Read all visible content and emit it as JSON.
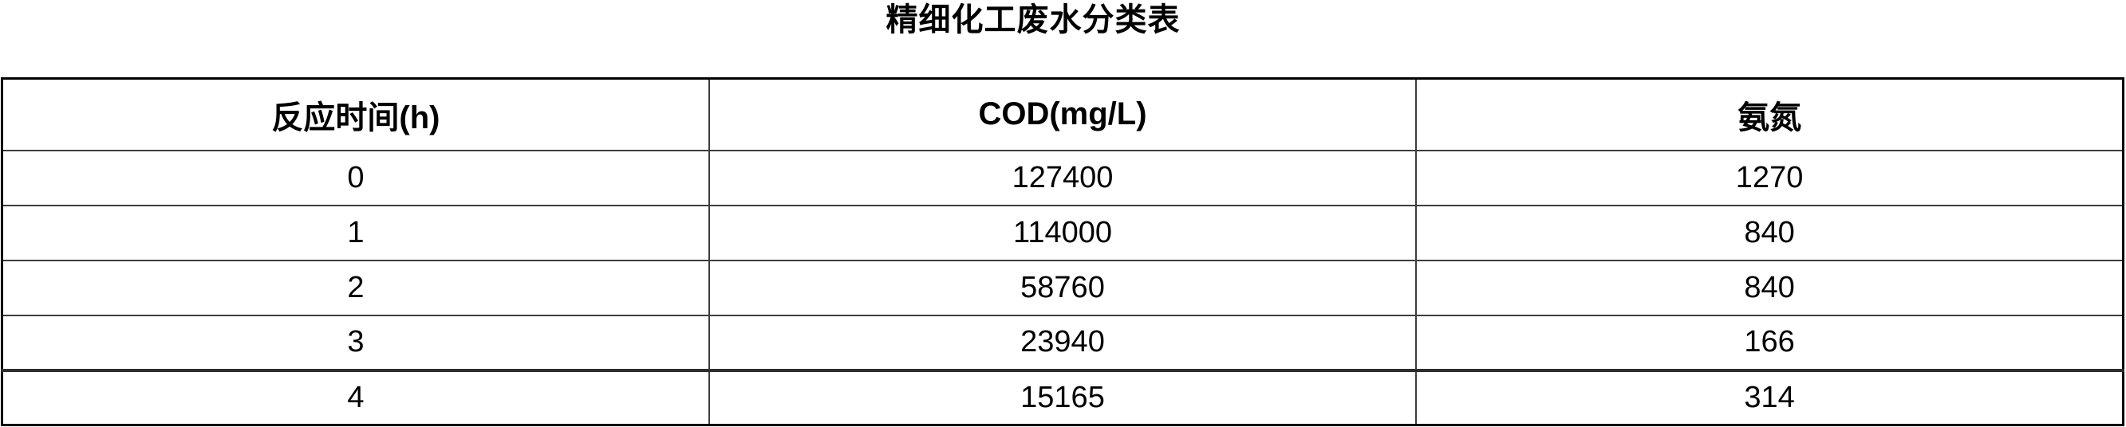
{
  "page": {
    "title": "精细化工废水分类表"
  },
  "table": {
    "columns": [
      "反应时间(h)",
      "COD(mg/L)",
      "氨氮"
    ],
    "rows": [
      [
        "0",
        "127400",
        "1270"
      ],
      [
        "1",
        "114000",
        "840"
      ],
      [
        "2",
        "58760",
        "840"
      ],
      [
        "3",
        "23940",
        "166"
      ],
      [
        "4",
        "15165",
        "314"
      ]
    ]
  },
  "chart_data": {
    "type": "table",
    "title": "精细化工废水分类表",
    "columns": [
      "反应时间(h)",
      "COD(mg/L)",
      "氨氮"
    ],
    "x_label": "反应时间(h)",
    "series": [
      {
        "name": "COD(mg/L)",
        "x": [
          0,
          1,
          2,
          3,
          4
        ],
        "values": [
          127400,
          114000,
          58760,
          23940,
          15165
        ]
      },
      {
        "name": "氨氮",
        "x": [
          0,
          1,
          2,
          3,
          4
        ],
        "values": [
          1270,
          840,
          840,
          166,
          314
        ]
      }
    ]
  }
}
